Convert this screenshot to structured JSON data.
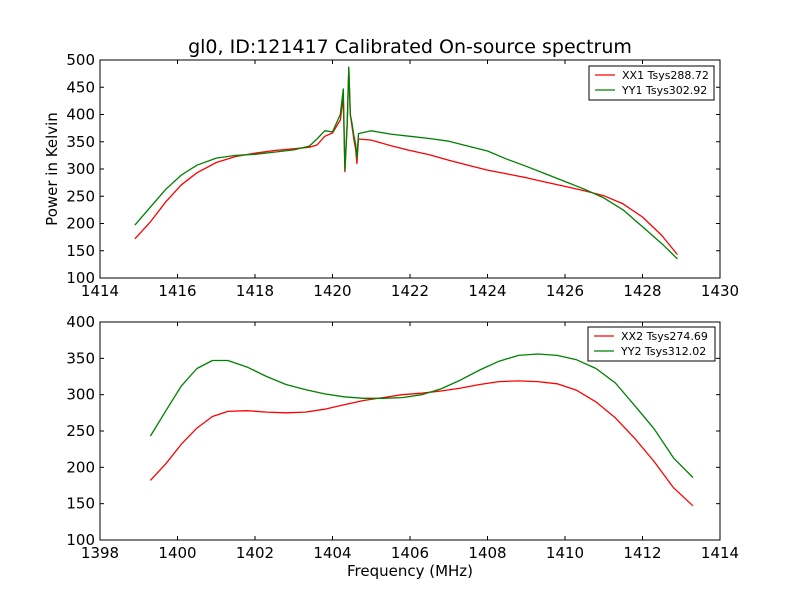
{
  "figure": {
    "title": "gl0, ID:121417 Calibrated On-source spectrum",
    "colors": {
      "xx": "#ff0000",
      "yy": "#008000",
      "axes": "#000000",
      "background": "#ffffff"
    }
  },
  "chart_data": [
    {
      "type": "line",
      "title": "gl0, ID:121417 Calibrated On-source spectrum",
      "xlabel": "",
      "ylabel": "Power in Kelvin",
      "xlim": [
        1414,
        1430
      ],
      "ylim": [
        100,
        500
      ],
      "xticks": [
        "1414",
        "1416",
        "1418",
        "1420",
        "1422",
        "1424",
        "1426",
        "1428",
        "1430"
      ],
      "yticks": [
        "100",
        "150",
        "200",
        "250",
        "300",
        "350",
        "400",
        "450",
        "500"
      ],
      "grid": false,
      "legend_position": "top-right",
      "series": [
        {
          "name": "XX1 Tsys288.72",
          "color": "#ff0000",
          "points": [
            [
              1414.9,
              172
            ],
            [
              1415.3,
              203
            ],
            [
              1415.7,
              240
            ],
            [
              1416.1,
              271
            ],
            [
              1416.5,
              293
            ],
            [
              1417.0,
              312
            ],
            [
              1417.5,
              323
            ],
            [
              1418.0,
              329
            ],
            [
              1418.5,
              334
            ],
            [
              1419.0,
              337
            ],
            [
              1419.4,
              340
            ],
            [
              1419.6,
              344
            ],
            [
              1419.8,
              360
            ],
            [
              1420.0,
              366
            ],
            [
              1420.2,
              390
            ],
            [
              1420.28,
              430
            ],
            [
              1420.32,
              295
            ],
            [
              1420.38,
              380
            ],
            [
              1420.42,
              485
            ],
            [
              1420.46,
              400
            ],
            [
              1420.5,
              380
            ],
            [
              1420.55,
              355
            ],
            [
              1420.6,
              335
            ],
            [
              1420.63,
              310
            ],
            [
              1420.67,
              355
            ],
            [
              1421.0,
              353
            ],
            [
              1421.5,
              343
            ],
            [
              1422.0,
              334
            ],
            [
              1422.5,
              326
            ],
            [
              1423.0,
              316
            ],
            [
              1423.5,
              307
            ],
            [
              1424.0,
              298
            ],
            [
              1424.5,
              291
            ],
            [
              1425.0,
              284
            ],
            [
              1425.5,
              276
            ],
            [
              1426.0,
              268
            ],
            [
              1426.5,
              260
            ],
            [
              1427.0,
              251
            ],
            [
              1427.5,
              236
            ],
            [
              1428.0,
              212
            ],
            [
              1428.5,
              178
            ],
            [
              1428.9,
              143
            ]
          ]
        },
        {
          "name": "YY1 Tsys302.92",
          "color": "#008000",
          "points": [
            [
              1414.9,
              197
            ],
            [
              1415.3,
              230
            ],
            [
              1415.7,
              263
            ],
            [
              1416.1,
              289
            ],
            [
              1416.5,
              307
            ],
            [
              1417.0,
              320
            ],
            [
              1417.5,
              325
            ],
            [
              1418.0,
              327
            ],
            [
              1418.5,
              331
            ],
            [
              1419.0,
              335
            ],
            [
              1419.4,
              342
            ],
            [
              1419.6,
              355
            ],
            [
              1419.8,
              370
            ],
            [
              1420.0,
              368
            ],
            [
              1420.2,
              400
            ],
            [
              1420.28,
              447
            ],
            [
              1420.32,
              298
            ],
            [
              1420.38,
              385
            ],
            [
              1420.42,
              487
            ],
            [
              1420.46,
              400
            ],
            [
              1420.5,
              385
            ],
            [
              1420.55,
              362
            ],
            [
              1420.6,
              345
            ],
            [
              1420.63,
              320
            ],
            [
              1420.67,
              365
            ],
            [
              1421.0,
              370
            ],
            [
              1421.5,
              364
            ],
            [
              1422.0,
              360
            ],
            [
              1422.5,
              356
            ],
            [
              1423.0,
              351
            ],
            [
              1423.5,
              342
            ],
            [
              1424.0,
              333
            ],
            [
              1424.5,
              318
            ],
            [
              1425.0,
              305
            ],
            [
              1425.5,
              291
            ],
            [
              1426.0,
              277
            ],
            [
              1426.5,
              263
            ],
            [
              1427.0,
              247
            ],
            [
              1427.5,
              225
            ],
            [
              1428.0,
              194
            ],
            [
              1428.5,
              163
            ],
            [
              1428.9,
              135
            ]
          ]
        }
      ]
    },
    {
      "type": "line",
      "title": "",
      "xlabel": "Frequency (MHz)",
      "ylabel": "",
      "xlim": [
        1398,
        1414
      ],
      "ylim": [
        100,
        400
      ],
      "xticks": [
        "1398",
        "1400",
        "1402",
        "1404",
        "1406",
        "1408",
        "1410",
        "1412",
        "1414"
      ],
      "yticks": [
        "100",
        "150",
        "200",
        "250",
        "300",
        "350",
        "400"
      ],
      "grid": false,
      "legend_position": "top-right",
      "series": [
        {
          "name": "XX2 Tsys274.69",
          "color": "#ff0000",
          "points": [
            [
              1399.3,
              182
            ],
            [
              1399.7,
              205
            ],
            [
              1400.1,
              232
            ],
            [
              1400.5,
              254
            ],
            [
              1400.9,
              270
            ],
            [
              1401.3,
              277
            ],
            [
              1401.8,
              278
            ],
            [
              1402.3,
              276
            ],
            [
              1402.8,
              275
            ],
            [
              1403.3,
              276
            ],
            [
              1403.8,
              280
            ],
            [
              1404.3,
              286
            ],
            [
              1404.8,
              292
            ],
            [
              1405.3,
              296
            ],
            [
              1405.8,
              300
            ],
            [
              1406.3,
              302
            ],
            [
              1406.8,
              305
            ],
            [
              1407.3,
              309
            ],
            [
              1407.8,
              314
            ],
            [
              1408.3,
              318
            ],
            [
              1408.8,
              319
            ],
            [
              1409.3,
              318
            ],
            [
              1409.8,
              315
            ],
            [
              1410.3,
              306
            ],
            [
              1410.8,
              290
            ],
            [
              1411.3,
              268
            ],
            [
              1411.8,
              240
            ],
            [
              1412.3,
              208
            ],
            [
              1412.8,
              172
            ],
            [
              1413.3,
              147
            ]
          ]
        },
        {
          "name": "YY2 Tsys312.02",
          "color": "#008000",
          "points": [
            [
              1399.3,
              243
            ],
            [
              1399.7,
              278
            ],
            [
              1400.1,
              312
            ],
            [
              1400.5,
              336
            ],
            [
              1400.9,
              347
            ],
            [
              1401.3,
              347
            ],
            [
              1401.8,
              338
            ],
            [
              1402.3,
              325
            ],
            [
              1402.8,
              314
            ],
            [
              1403.3,
              307
            ],
            [
              1403.8,
              301
            ],
            [
              1404.3,
              297
            ],
            [
              1404.8,
              295
            ],
            [
              1405.3,
              295
            ],
            [
              1405.8,
              296
            ],
            [
              1406.3,
              300
            ],
            [
              1406.8,
              308
            ],
            [
              1407.3,
              320
            ],
            [
              1407.8,
              334
            ],
            [
              1408.3,
              346
            ],
            [
              1408.8,
              354
            ],
            [
              1409.3,
              356
            ],
            [
              1409.8,
              354
            ],
            [
              1410.3,
              348
            ],
            [
              1410.8,
              336
            ],
            [
              1411.3,
              316
            ],
            [
              1411.8,
              285
            ],
            [
              1412.3,
              253
            ],
            [
              1412.8,
              213
            ],
            [
              1413.3,
              186
            ]
          ]
        }
      ]
    }
  ]
}
